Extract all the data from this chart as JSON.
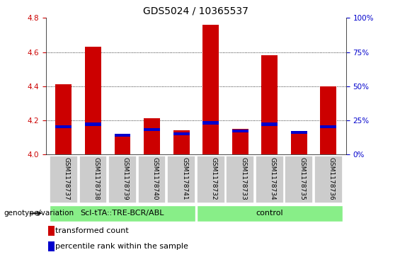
{
  "title": "GDS5024 / 10365537",
  "samples": [
    "GSM1178737",
    "GSM1178738",
    "GSM1178739",
    "GSM1178740",
    "GSM1178741",
    "GSM1178732",
    "GSM1178733",
    "GSM1178734",
    "GSM1178735",
    "GSM1178736"
  ],
  "red_values": [
    4.41,
    4.63,
    4.12,
    4.21,
    4.14,
    4.76,
    4.15,
    4.58,
    4.13,
    4.4
  ],
  "blue_values": [
    20,
    22,
    14,
    18,
    15,
    23,
    17,
    22,
    16,
    20
  ],
  "y_min": 4.0,
  "y_max": 4.8,
  "y_ticks": [
    4.0,
    4.2,
    4.4,
    4.6,
    4.8
  ],
  "right_y_ticks": [
    0,
    25,
    50,
    75,
    100
  ],
  "right_y_labels": [
    "0%",
    "25%",
    "50%",
    "75%",
    "100%"
  ],
  "group1_label": "Scl-tTA::TRE-BCR/ABL",
  "group2_label": "control",
  "group1_indices": [
    0,
    1,
    2,
    3,
    4
  ],
  "group2_indices": [
    5,
    6,
    7,
    8,
    9
  ],
  "genotype_label": "genotype/variation",
  "red_color": "#cc0000",
  "blue_color": "#0000cc",
  "group_bg_color": "#88ee88",
  "sample_bg_color": "#cccccc",
  "bar_width": 0.55,
  "legend_red": "transformed count",
  "legend_blue": "percentile rank within the sample",
  "title_fontsize": 10,
  "tick_fontsize": 7.5,
  "sample_fontsize": 6.5,
  "group_fontsize": 8,
  "legend_fontsize": 8
}
